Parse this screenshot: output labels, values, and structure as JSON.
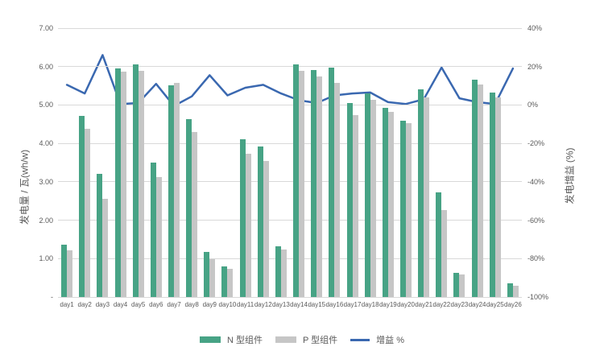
{
  "chart_data": {
    "type": "combo-bar-line",
    "categories": [
      "day1",
      "day2",
      "day3",
      "day4",
      "day5",
      "day6",
      "day7",
      "day8",
      "day9",
      "day10",
      "day11",
      "day12",
      "day13",
      "day14",
      "day15",
      "day16",
      "day17",
      "day18",
      "day19",
      "day20",
      "day21",
      "day22",
      "day23",
      "day24",
      "day25",
      "day26"
    ],
    "series": [
      {
        "name": "N 型组件",
        "type": "bar",
        "axis": "left",
        "color": "#47A385",
        "values": [
          1.37,
          4.72,
          3.2,
          5.95,
          6.05,
          3.5,
          5.52,
          4.63,
          1.17,
          0.8,
          4.11,
          3.92,
          1.32,
          6.05,
          5.9,
          5.97,
          5.06,
          5.3,
          4.93,
          4.6,
          5.4,
          2.72,
          0.62,
          5.65,
          5.32,
          0.36
        ]
      },
      {
        "name": "P 型组件",
        "type": "bar",
        "axis": "left",
        "color": "#C6C6C6",
        "values": [
          1.22,
          4.38,
          2.55,
          5.87,
          5.89,
          3.13,
          5.58,
          4.3,
          0.98,
          0.74,
          3.73,
          3.54,
          1.23,
          5.88,
          5.74,
          5.57,
          4.73,
          5.14,
          4.81,
          4.53,
          5.19,
          2.27,
          0.58,
          5.53,
          5.2,
          0.29
        ]
      },
      {
        "name": "增益 %",
        "type": "line",
        "axis": "right",
        "color": "#3A68B0",
        "values": [
          10.5,
          6,
          26,
          0.5,
          1,
          11,
          -0.5,
          4.5,
          15.5,
          5,
          9,
          10.5,
          6,
          2.5,
          1,
          5,
          6,
          6.5,
          1.5,
          0.5,
          3,
          19.5,
          3.5,
          1.5,
          0.5,
          19
        ]
      }
    ],
    "left_axis": {
      "title": "发电量 / 瓦(wh/w)",
      "min": 0,
      "max": 7,
      "tick_labels": [
        "7.00",
        "6.00",
        "5.00",
        "4.00",
        "3.00",
        "2.00",
        "1.00",
        "-"
      ],
      "tick_values": [
        7,
        6,
        5,
        4,
        3,
        2,
        1,
        0
      ]
    },
    "right_axis": {
      "title": "发电增益 (%)",
      "min": -100,
      "max": 40,
      "tick_labels": [
        "40%",
        "20%",
        "0%",
        "-20%",
        "-40%",
        "-60%",
        "-80%",
        "-100%"
      ],
      "tick_values": [
        40,
        20,
        0,
        -20,
        -40,
        -60,
        -80,
        -100
      ]
    },
    "grid": true,
    "legend_position": "bottom"
  }
}
